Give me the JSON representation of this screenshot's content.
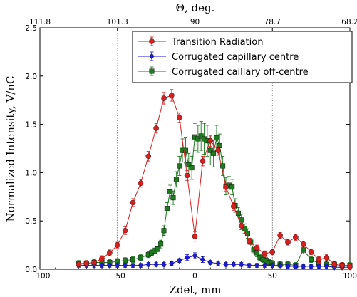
{
  "chart_data": {
    "type": "line",
    "title": "",
    "xlabel": "Zdet, mm",
    "ylabel": "Normalized Intensity, V/nC",
    "top_xlabel": "Θ, deg.",
    "xlim": [
      -100,
      100
    ],
    "ylim": [
      0,
      2.5
    ],
    "grid": false,
    "legend_position": "top-right",
    "x_ticks": [
      -100,
      -50,
      0,
      50,
      100
    ],
    "x_tick_labels": [
      "−100",
      "−50",
      "0",
      "50",
      "100"
    ],
    "y_ticks": [
      0.0,
      0.5,
      1.0,
      1.5,
      2.0,
      2.5
    ],
    "y_tick_labels": [
      "0.0",
      "0.5",
      "1.0",
      "1.5",
      "2.0",
      "2.5"
    ],
    "top_ticks_x": [
      -100,
      -50,
      0,
      50,
      100
    ],
    "top_tick_labels": [
      "111.8",
      "101.3",
      "90",
      "78.7",
      "68.2"
    ],
    "vlines_x": [
      -50,
      0,
      50
    ],
    "series": [
      {
        "name": "Transition Radiation",
        "color": "#d62020",
        "marker": "circle",
        "x": [
          -75,
          -70,
          -65,
          -60,
          -55,
          -50,
          -45,
          -40,
          -35,
          -30,
          -25,
          -20,
          -15,
          -10,
          -5,
          0,
          5,
          10,
          15,
          20,
          25,
          30,
          35,
          40,
          45,
          50,
          55,
          60,
          65,
          70,
          75,
          80,
          85,
          90,
          95,
          100
        ],
        "y": [
          0.05,
          0.06,
          0.07,
          0.11,
          0.17,
          0.25,
          0.4,
          0.69,
          0.89,
          1.17,
          1.46,
          1.77,
          1.8,
          1.57,
          0.97,
          0.34,
          1.12,
          1.33,
          1.23,
          0.85,
          0.65,
          0.45,
          0.29,
          0.22,
          0.16,
          0.18,
          0.35,
          0.28,
          0.33,
          0.26,
          0.18,
          0.1,
          0.12,
          0.05,
          0.04,
          0.03
        ],
        "err": [
          0.03,
          0.03,
          0.03,
          0.03,
          0.03,
          0.03,
          0.04,
          0.04,
          0.04,
          0.05,
          0.05,
          0.06,
          0.06,
          0.05,
          0.05,
          0.05,
          0.05,
          0.06,
          0.05,
          0.04,
          0.04,
          0.04,
          0.03,
          0.03,
          0.03,
          0.03,
          0.03,
          0.03,
          0.03,
          0.03,
          0.03,
          0.03,
          0.03,
          0.03,
          0.03,
          0.03
        ]
      },
      {
        "name": "Corrugated capillary centre",
        "color": "#1a1adb",
        "marker": "diamond",
        "x": [
          -75,
          -70,
          -65,
          -60,
          -55,
          -50,
          -45,
          -40,
          -35,
          -30,
          -25,
          -20,
          -15,
          -10,
          -5,
          0,
          5,
          10,
          15,
          20,
          25,
          30,
          35,
          40,
          45,
          50,
          55,
          60,
          65,
          70,
          75,
          80,
          85,
          90,
          95,
          100
        ],
        "y": [
          0.04,
          0.04,
          0.04,
          0.04,
          0.04,
          0.04,
          0.04,
          0.04,
          0.04,
          0.05,
          0.05,
          0.05,
          0.06,
          0.09,
          0.12,
          0.14,
          0.1,
          0.07,
          0.06,
          0.05,
          0.05,
          0.05,
          0.04,
          0.04,
          0.04,
          0.04,
          0.04,
          0.03,
          0.03,
          0.03,
          0.03,
          0.03,
          0.03,
          0.02,
          0.02,
          0.02
        ],
        "err": [
          0.02,
          0.02,
          0.02,
          0.02,
          0.02,
          0.02,
          0.02,
          0.02,
          0.02,
          0.02,
          0.02,
          0.02,
          0.02,
          0.02,
          0.03,
          0.03,
          0.03,
          0.02,
          0.02,
          0.02,
          0.02,
          0.02,
          0.02,
          0.02,
          0.02,
          0.02,
          0.02,
          0.02,
          0.02,
          0.02,
          0.02,
          0.02,
          0.02,
          0.02,
          0.02,
          0.02
        ]
      },
      {
        "name": "Corrugated caillary off-centre",
        "color": "#1e7a1e",
        "marker": "square",
        "x": [
          -75,
          -70,
          -65,
          -60,
          -55,
          -50,
          -45,
          -40,
          -35,
          -30,
          -28,
          -26,
          -24,
          -22,
          -20,
          -18,
          -16,
          -14,
          -12,
          -10,
          -8,
          -6,
          -4,
          -2,
          0,
          2,
          4,
          6,
          8,
          10,
          12,
          14,
          16,
          18,
          20,
          22,
          24,
          26,
          28,
          30,
          32,
          34,
          36,
          38,
          40,
          42,
          44,
          46,
          48,
          50,
          55,
          60,
          65,
          70,
          75,
          80,
          85,
          90,
          95,
          100
        ],
        "y": [
          0.06,
          0.06,
          0.07,
          0.07,
          0.07,
          0.08,
          0.09,
          0.1,
          0.12,
          0.15,
          0.17,
          0.19,
          0.21,
          0.26,
          0.4,
          0.63,
          0.8,
          0.74,
          0.93,
          1.07,
          1.23,
          1.23,
          1.08,
          1.05,
          1.37,
          1.35,
          1.38,
          1.35,
          1.33,
          1.23,
          1.2,
          1.36,
          1.28,
          1.07,
          0.86,
          0.87,
          0.85,
          0.66,
          0.58,
          0.51,
          0.42,
          0.37,
          0.28,
          0.2,
          0.17,
          0.12,
          0.1,
          0.09,
          0.07,
          0.06,
          0.05,
          0.05,
          0.04,
          0.2,
          0.1,
          0.06,
          0.05,
          0.05,
          0.04,
          0.04
        ],
        "err": [
          0.03,
          0.03,
          0.03,
          0.03,
          0.03,
          0.03,
          0.03,
          0.03,
          0.03,
          0.03,
          0.03,
          0.03,
          0.03,
          0.04,
          0.05,
          0.06,
          0.07,
          0.07,
          0.08,
          0.1,
          0.12,
          0.13,
          0.12,
          0.12,
          0.14,
          0.14,
          0.15,
          0.16,
          0.16,
          0.15,
          0.14,
          0.13,
          0.12,
          0.1,
          0.09,
          0.09,
          0.08,
          0.07,
          0.06,
          0.06,
          0.05,
          0.05,
          0.04,
          0.04,
          0.04,
          0.03,
          0.03,
          0.03,
          0.03,
          0.03,
          0.03,
          0.03,
          0.03,
          0.04,
          0.03,
          0.03,
          0.03,
          0.03,
          0.03,
          0.03
        ]
      }
    ]
  }
}
